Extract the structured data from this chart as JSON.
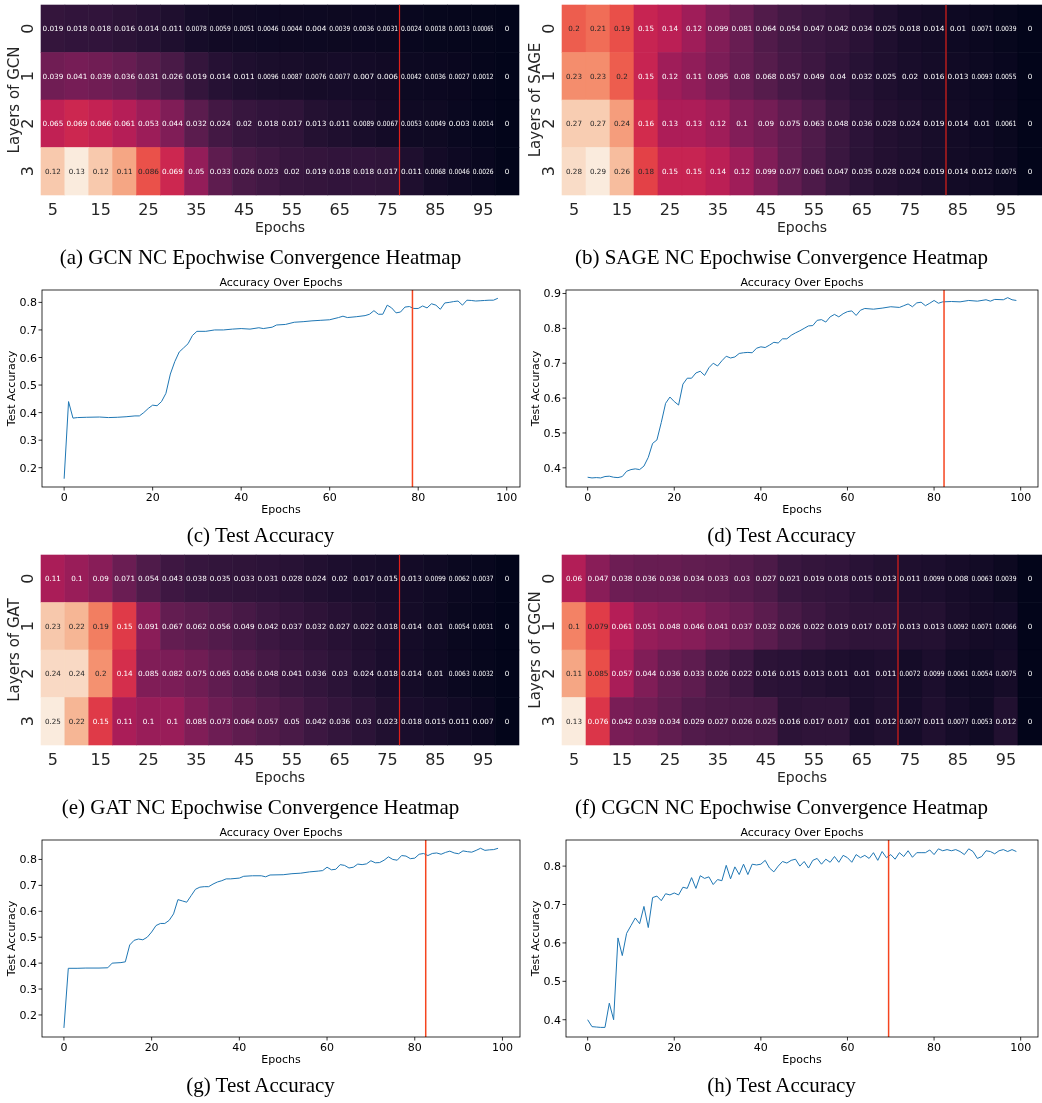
{
  "chart_data": [
    {
      "type": "heatmap",
      "xlabel": "Epochs",
      "ylabel": "Layers of GCN",
      "annotations": [
        "(a) GCN NC Epochwise Convergence Heatmap"
      ],
      "data_labels": true,
      "categories": [
        "5",
        null,
        "15",
        null,
        "25",
        null,
        "35",
        null,
        "45",
        null,
        "55",
        null,
        "65",
        null,
        "75",
        null,
        "85",
        null,
        "95",
        null
      ],
      "y_categories": [
        "0",
        "1",
        "2",
        "3"
      ],
      "cells": [
        [
          0.019,
          0.018,
          0.018,
          0.016,
          0.014,
          0.011,
          0.0078,
          0.0059,
          0.0051,
          0.0046,
          0.0044,
          0.004,
          0.0039,
          0.0036,
          0.0031,
          0.0024,
          0.0018,
          0.0013,
          0.00065,
          0
        ],
        [
          0.039,
          0.041,
          0.039,
          0.036,
          0.031,
          0.026,
          0.019,
          0.014,
          0.011,
          0.0096,
          0.0087,
          0.0076,
          0.0077,
          0.007,
          0.006,
          0.0042,
          0.0036,
          0.0027,
          0.0012,
          0
        ],
        [
          0.065,
          0.069,
          0.066,
          0.061,
          0.053,
          0.044,
          0.032,
          0.024,
          0.02,
          0.018,
          0.017,
          0.013,
          0.011,
          0.0089,
          0.0067,
          0.0053,
          0.0049,
          0.003,
          0.0014,
          0
        ],
        [
          0.12,
          0.13,
          0.12,
          0.11,
          0.086,
          0.069,
          0.05,
          0.033,
          0.026,
          0.023,
          0.02,
          0.019,
          0.018,
          0.018,
          0.017,
          0.011,
          0.0068,
          0.0046,
          0.0026,
          0
        ]
      ]
    },
    {
      "type": "heatmap",
      "xlabel": "Epochs",
      "ylabel": "Layers of SAGE",
      "annotations": [
        "(b) SAGE NC Epochwise Convergence Heatmap"
      ],
      "data_labels": true,
      "categories": [
        "5",
        null,
        "15",
        null,
        "25",
        null,
        "35",
        null,
        "45",
        null,
        "55",
        null,
        "65",
        null,
        "75",
        null,
        "85",
        null,
        "95",
        null
      ],
      "y_categories": [
        "0",
        "1",
        "2",
        "3"
      ],
      "cells": [
        [
          0.2,
          0.21,
          0.19,
          0.15,
          0.14,
          0.12,
          0.099,
          0.081,
          0.064,
          0.054,
          0.047,
          0.042,
          0.034,
          0.025,
          0.018,
          0.014,
          0.01,
          0.0071,
          0.0039,
          0
        ],
        [
          0.23,
          0.23,
          0.2,
          0.15,
          0.12,
          0.11,
          0.095,
          0.08,
          0.068,
          0.057,
          0.049,
          0.04,
          0.032,
          0.025,
          0.02,
          0.016,
          0.013,
          0.0093,
          0.0055,
          0
        ],
        [
          0.27,
          0.27,
          0.24,
          0.16,
          0.13,
          0.13,
          0.12,
          0.1,
          0.09,
          0.075,
          0.063,
          0.048,
          0.036,
          0.028,
          0.024,
          0.019,
          0.014,
          0.01,
          0.0061,
          0
        ],
        [
          0.28,
          0.29,
          0.26,
          0.18,
          0.15,
          0.15,
          0.14,
          0.12,
          0.099,
          0.077,
          0.061,
          0.047,
          0.035,
          0.028,
          0.024,
          0.019,
          0.014,
          0.012,
          0.0075,
          0
        ]
      ]
    },
    {
      "type": "line",
      "title": "Accuracy Over Epochs",
      "xlabel": "Epochs",
      "ylabel": "Test Accuracy",
      "annotations": [
        "(c) Test Accuracy"
      ],
      "xlim": [
        -5,
        103
      ],
      "xticks": [
        0,
        20,
        40,
        60,
        80,
        100
      ],
      "ylim": [
        0.13,
        0.845
      ],
      "yticks": [
        0.2,
        0.3,
        0.4,
        0.5,
        0.6,
        0.7,
        0.8
      ],
      "series": [
        {
          "color": "#1f77b4",
          "x": [
            0,
            1,
            2,
            3,
            5,
            8,
            10,
            12,
            14,
            16,
            17,
            18,
            19,
            20,
            21,
            22,
            23,
            24,
            25,
            26,
            27,
            28,
            29,
            30,
            32,
            34,
            36,
            38,
            40,
            42,
            44,
            45,
            47,
            48,
            50,
            52,
            54,
            56,
            58,
            60,
            62,
            63,
            64,
            66,
            68,
            69,
            70,
            71,
            72,
            73,
            74,
            75,
            76,
            77,
            78,
            79,
            80,
            81,
            82,
            83,
            84,
            85,
            86,
            87,
            88,
            89,
            90,
            91,
            92,
            93,
            94,
            95,
            96,
            97,
            98
          ],
          "values": [
            0.16,
            0.44,
            0.38,
            0.382,
            0.383,
            0.384,
            0.382,
            0.383,
            0.385,
            0.388,
            0.388,
            0.4,
            0.415,
            0.427,
            0.425,
            0.44,
            0.47,
            0.54,
            0.585,
            0.62,
            0.635,
            0.65,
            0.68,
            0.695,
            0.695,
            0.7,
            0.7,
            0.703,
            0.705,
            0.703,
            0.708,
            0.705,
            0.71,
            0.718,
            0.72,
            0.728,
            0.73,
            0.733,
            0.735,
            0.737,
            0.745,
            0.75,
            0.745,
            0.748,
            0.752,
            0.757,
            0.77,
            0.757,
            0.757,
            0.79,
            0.78,
            0.762,
            0.765,
            0.783,
            0.785,
            0.778,
            0.778,
            0.787,
            0.78,
            0.795,
            0.79,
            0.775,
            0.798,
            0.8,
            0.803,
            0.805,
            0.79,
            0.808,
            0.807,
            0.805,
            0.806,
            0.807,
            0.808,
            0.808,
            0.815
          ]
        }
      ],
      "ref_lines": [
        {
          "axis": "x",
          "value": 78.7,
          "color": "#f5451f"
        }
      ]
    },
    {
      "type": "line",
      "title": "Accuracy Over Epochs",
      "xlabel": "Epochs",
      "ylabel": "Test Accuracy",
      "annotations": [
        "(d) Test Accuracy"
      ],
      "xlim": [
        -5,
        104
      ],
      "xticks": [
        0,
        20,
        40,
        60,
        80,
        100
      ],
      "ylim": [
        0.345,
        0.91
      ],
      "yticks": [
        0.4,
        0.5,
        0.6,
        0.7,
        0.8,
        0.9
      ],
      "series": [
        {
          "color": "#1f77b4",
          "x": [
            0,
            1,
            2,
            3,
            4,
            5,
            6,
            7,
            8,
            9,
            10,
            11,
            12,
            13,
            14,
            15,
            16,
            17,
            18,
            19,
            20,
            21,
            22,
            23,
            24,
            25,
            26,
            27,
            28,
            29,
            30,
            31,
            32,
            33,
            34,
            35,
            36,
            37,
            38,
            39,
            40,
            41,
            42,
            43,
            44,
            45,
            46,
            47,
            48,
            49,
            50,
            51,
            52,
            53,
            54,
            55,
            56,
            57,
            58,
            59,
            60,
            61,
            62,
            63,
            64,
            66,
            68,
            70,
            72,
            73,
            74,
            75,
            76,
            77,
            78,
            79,
            80,
            81,
            82,
            84,
            86,
            88,
            90,
            92,
            93,
            94,
            96,
            97,
            98,
            99
          ],
          "values": [
            0.373,
            0.371,
            0.372,
            0.371,
            0.375,
            0.376,
            0.373,
            0.372,
            0.375,
            0.39,
            0.395,
            0.397,
            0.395,
            0.405,
            0.43,
            0.47,
            0.48,
            0.53,
            0.585,
            0.603,
            0.59,
            0.58,
            0.64,
            0.657,
            0.657,
            0.672,
            0.677,
            0.665,
            0.687,
            0.7,
            0.692,
            0.707,
            0.72,
            0.715,
            0.718,
            0.728,
            0.73,
            0.731,
            0.73,
            0.743,
            0.747,
            0.745,
            0.752,
            0.76,
            0.758,
            0.77,
            0.77,
            0.78,
            0.787,
            0.793,
            0.8,
            0.807,
            0.808,
            0.823,
            0.825,
            0.818,
            0.833,
            0.84,
            0.833,
            0.842,
            0.848,
            0.85,
            0.837,
            0.852,
            0.857,
            0.855,
            0.858,
            0.862,
            0.86,
            0.865,
            0.87,
            0.862,
            0.873,
            0.875,
            0.865,
            0.872,
            0.88,
            0.872,
            0.876,
            0.877,
            0.876,
            0.88,
            0.878,
            0.882,
            0.878,
            0.883,
            0.882,
            0.888,
            0.882,
            0.88
          ]
        }
      ],
      "ref_lines": [
        {
          "axis": "x",
          "value": 82.3,
          "color": "#f5451f"
        }
      ]
    },
    {
      "type": "heatmap",
      "xlabel": "Epochs",
      "ylabel": "Layers of GAT",
      "annotations": [
        "(e) GAT NC Epochwise Convergence Heatmap"
      ],
      "data_labels": true,
      "categories": [
        "5",
        null,
        "15",
        null,
        "25",
        null,
        "35",
        null,
        "45",
        null,
        "55",
        null,
        "65",
        null,
        "75",
        null,
        "85",
        null,
        "95",
        null
      ],
      "y_categories": [
        "0",
        "1",
        "2",
        "3"
      ],
      "cells": [
        [
          0.11,
          0.1,
          0.09,
          0.071,
          0.054,
          0.043,
          0.038,
          0.035,
          0.033,
          0.031,
          0.028,
          0.024,
          0.02,
          0.017,
          0.015,
          0.013,
          0.0099,
          0.0062,
          0.0037,
          0
        ],
        [
          0.23,
          0.22,
          0.19,
          0.15,
          0.091,
          0.067,
          0.062,
          0.056,
          0.049,
          0.042,
          0.037,
          0.032,
          0.027,
          0.022,
          0.018,
          0.014,
          0.01,
          0.0054,
          0.0031,
          0
        ],
        [
          0.24,
          0.24,
          0.2,
          0.14,
          0.085,
          0.082,
          0.075,
          0.065,
          0.056,
          0.048,
          0.041,
          0.036,
          0.03,
          0.024,
          0.018,
          0.014,
          0.01,
          0.0063,
          0.0032,
          0
        ],
        [
          0.25,
          0.22,
          0.15,
          0.11,
          0.1,
          0.1,
          0.085,
          0.073,
          0.064,
          0.057,
          0.05,
          0.042,
          0.036,
          0.03,
          0.023,
          0.018,
          0.015,
          0.011,
          0.007,
          0
        ]
      ]
    },
    {
      "type": "heatmap",
      "xlabel": "Epochs",
      "ylabel": "Layers of CGCN",
      "annotations": [
        "(f) CGCN NC Epochwise Convergence Heatmap"
      ],
      "data_labels": true,
      "categories": [
        "5",
        null,
        "15",
        null,
        "25",
        null,
        "35",
        null,
        "45",
        null,
        "55",
        null,
        "65",
        null,
        "75",
        null,
        "85",
        null,
        "95",
        null
      ],
      "y_categories": [
        "0",
        "1",
        "2",
        "3"
      ],
      "cells": [
        [
          0.06,
          0.047,
          0.038,
          0.036,
          0.036,
          0.034,
          0.033,
          0.03,
          0.027,
          0.021,
          0.019,
          0.018,
          0.015,
          0.013,
          0.011,
          0.0099,
          0.008,
          0.0063,
          0.0039,
          0
        ],
        [
          0.1,
          0.079,
          0.061,
          0.051,
          0.048,
          0.046,
          0.041,
          0.037,
          0.032,
          0.026,
          0.022,
          0.019,
          0.017,
          0.017,
          0.013,
          0.013,
          0.0092,
          0.0071,
          0.0066,
          0
        ],
        [
          0.11,
          0.085,
          0.057,
          0.044,
          0.036,
          0.033,
          0.026,
          0.022,
          0.016,
          0.015,
          0.013,
          0.011,
          0.01,
          0.011,
          0.0072,
          0.0099,
          0.0061,
          0.0054,
          0.0075,
          0
        ],
        [
          0.13,
          0.076,
          0.042,
          0.039,
          0.034,
          0.029,
          0.027,
          0.026,
          0.025,
          0.016,
          0.017,
          0.017,
          0.01,
          0.012,
          0.0077,
          0.011,
          0.0077,
          0.0053,
          0.012,
          0
        ]
      ]
    },
    {
      "type": "line",
      "title": "Accuracy Over Epochs",
      "xlabel": "Epochs",
      "ylabel": "Test Accuracy",
      "annotations": [
        "(g) Test Accuracy"
      ],
      "xlim": [
        -5,
        104
      ],
      "xticks": [
        0,
        20,
        40,
        60,
        80,
        100
      ],
      "ylim": [
        0.115,
        0.875
      ],
      "yticks": [
        0.2,
        0.3,
        0.4,
        0.5,
        0.6,
        0.7,
        0.8
      ],
      "series": [
        {
          "color": "#1f77b4",
          "x": [
            0,
            1,
            3,
            5,
            8,
            10,
            11,
            13,
            14,
            15,
            16,
            17,
            18,
            19,
            20,
            21,
            22,
            23,
            24,
            25,
            26,
            27,
            28,
            29,
            30,
            31,
            32,
            33,
            34,
            35,
            36,
            37,
            38,
            40,
            41,
            43,
            45,
            46,
            47,
            50,
            52,
            54,
            56,
            58,
            59,
            60,
            61,
            62,
            63,
            64,
            65,
            66,
            67,
            68,
            69,
            70,
            71,
            72,
            73,
            74,
            75,
            76,
            77,
            78,
            79,
            80,
            81,
            82,
            83,
            84,
            85,
            86,
            87,
            88,
            89,
            90,
            91,
            92,
            93,
            94,
            95,
            96,
            97,
            98,
            99
          ],
          "values": [
            0.15,
            0.38,
            0.38,
            0.381,
            0.381,
            0.382,
            0.4,
            0.402,
            0.405,
            0.47,
            0.488,
            0.493,
            0.49,
            0.5,
            0.52,
            0.545,
            0.553,
            0.553,
            0.565,
            0.59,
            0.645,
            0.64,
            0.635,
            0.66,
            0.685,
            0.693,
            0.695,
            0.695,
            0.705,
            0.713,
            0.718,
            0.725,
            0.725,
            0.728,
            0.735,
            0.737,
            0.737,
            0.733,
            0.74,
            0.741,
            0.745,
            0.747,
            0.752,
            0.755,
            0.757,
            0.77,
            0.76,
            0.762,
            0.78,
            0.777,
            0.767,
            0.77,
            0.782,
            0.78,
            0.783,
            0.795,
            0.787,
            0.788,
            0.797,
            0.81,
            0.8,
            0.797,
            0.815,
            0.813,
            0.803,
            0.805,
            0.82,
            0.823,
            0.815,
            0.823,
            0.825,
            0.82,
            0.827,
            0.832,
            0.825,
            0.822,
            0.833,
            0.83,
            0.828,
            0.835,
            0.843,
            0.835,
            0.837,
            0.838,
            0.843
          ]
        }
      ],
      "ref_lines": [
        {
          "axis": "x",
          "value": 82.5,
          "color": "#f5451f"
        }
      ]
    },
    {
      "type": "line",
      "title": "Accuracy Over Epochs",
      "xlabel": "Epochs",
      "ylabel": "Test Accuracy",
      "annotations": [
        "(h) Test Accuracy"
      ],
      "xlim": [
        -5,
        104
      ],
      "xticks": [
        0,
        20,
        40,
        60,
        80,
        100
      ],
      "ylim": [
        0.355,
        0.868
      ],
      "yticks": [
        0.4,
        0.5,
        0.6,
        0.7,
        0.8
      ],
      "series": [
        {
          "color": "#1f77b4",
          "x": [
            0,
            1,
            2,
            3,
            4,
            5,
            6,
            7,
            8,
            9,
            10,
            11,
            12,
            13,
            14,
            15,
            16,
            17,
            18,
            19,
            20,
            21,
            22,
            23,
            24,
            25,
            26,
            27,
            28,
            29,
            30,
            31,
            32,
            33,
            34,
            35,
            36,
            37,
            38,
            39,
            40,
            41,
            42,
            43,
            44,
            45,
            46,
            47,
            48,
            49,
            50,
            51,
            52,
            53,
            54,
            55,
            56,
            57,
            58,
            59,
            60,
            61,
            62,
            63,
            64,
            65,
            66,
            67,
            68,
            69,
            70,
            71,
            72,
            73,
            74,
            75,
            76,
            77,
            78,
            79,
            80,
            81,
            82,
            83,
            84,
            85,
            86,
            87,
            88,
            89,
            90,
            91,
            92,
            93,
            94,
            95,
            96,
            97,
            98,
            99
          ],
          "values": [
            0.4,
            0.382,
            0.381,
            0.38,
            0.38,
            0.443,
            0.4,
            0.613,
            0.567,
            0.625,
            0.645,
            0.665,
            0.65,
            0.695,
            0.64,
            0.718,
            0.722,
            0.71,
            0.728,
            0.725,
            0.73,
            0.725,
            0.745,
            0.742,
            0.77,
            0.742,
            0.775,
            0.768,
            0.772,
            0.752,
            0.765,
            0.762,
            0.802,
            0.767,
            0.798,
            0.778,
            0.805,
            0.778,
            0.805,
            0.803,
            0.805,
            0.815,
            0.795,
            0.785,
            0.8,
            0.812,
            0.808,
            0.815,
            0.818,
            0.8,
            0.812,
            0.795,
            0.815,
            0.82,
            0.805,
            0.818,
            0.81,
            0.825,
            0.81,
            0.828,
            0.822,
            0.81,
            0.83,
            0.822,
            0.828,
            0.82,
            0.835,
            0.815,
            0.838,
            0.822,
            0.83,
            0.818,
            0.835,
            0.825,
            0.84,
            0.823,
            0.835,
            0.835,
            0.835,
            0.842,
            0.83,
            0.845,
            0.84,
            0.843,
            0.84,
            0.843,
            0.838,
            0.83,
            0.845,
            0.838,
            0.82,
            0.825,
            0.84,
            0.838,
            0.832,
            0.84,
            0.843,
            0.838,
            0.843,
            0.838
          ]
        }
      ],
      "ref_lines": [
        {
          "axis": "x",
          "value": 69.5,
          "color": "#f5451f"
        }
      ]
    }
  ]
}
